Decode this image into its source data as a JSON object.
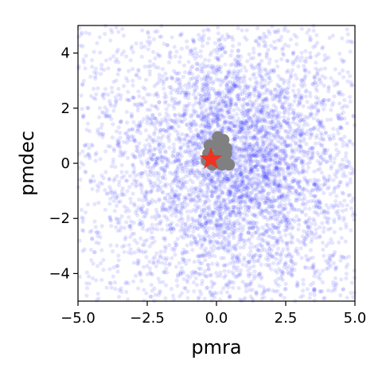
{
  "chart_data": {
    "type": "scatter",
    "title": "",
    "xlabel": "pmra",
    "ylabel": "pmdec",
    "xlim": [
      -5.0,
      5.0
    ],
    "ylim": [
      -5.0,
      5.0
    ],
    "grid": false,
    "x_ticks": [
      "−5.0",
      "−2.5",
      "0.0",
      "2.5",
      "5.0"
    ],
    "x_tick_values": [
      -5.0,
      -2.5,
      0.0,
      2.5,
      5.0
    ],
    "y_ticks": [
      "−4",
      "−2",
      "0",
      "2",
      "4"
    ],
    "y_tick_values": [
      -4,
      -2,
      0,
      2,
      4
    ],
    "series": [
      {
        "kind": "background-field",
        "color": "#0000ff",
        "opacity": 0.1,
        "approx_count": 5000,
        "center": [
          0.8,
          0.0
        ],
        "spread": [
          2.0,
          2.2
        ]
      },
      {
        "kind": "cluster-members",
        "color": "#808080",
        "points": [
          [
            0.05,
            0.95
          ],
          [
            0.25,
            0.85
          ],
          [
            0.35,
            0.55
          ],
          [
            0.1,
            0.55
          ],
          [
            -0.25,
            0.65
          ],
          [
            0.0,
            0.25
          ],
          [
            0.3,
            0.2
          ],
          [
            -0.35,
            0.1
          ],
          [
            0.2,
            -0.05
          ],
          [
            0.45,
            -0.05
          ],
          [
            -0.15,
            -0.05
          ],
          [
            0.1,
            0.75
          ],
          [
            -0.3,
            0.35
          ],
          [
            0.35,
            0.35
          ]
        ]
      },
      {
        "kind": "highlight",
        "marker": "star",
        "color": "#ee3322",
        "points": [
          [
            -0.2,
            0.15
          ]
        ]
      }
    ]
  }
}
